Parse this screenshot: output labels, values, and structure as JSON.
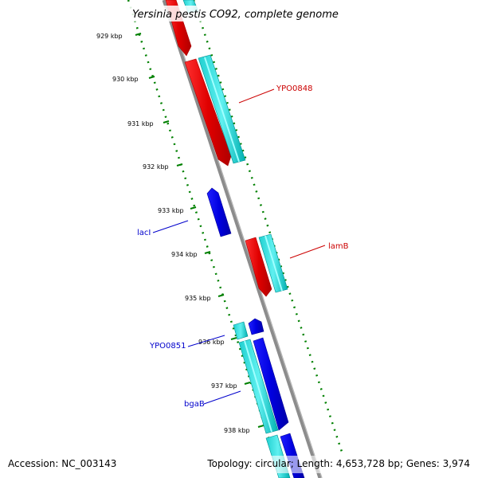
{
  "map": {
    "title": "Yersinia pestis CO92, complete genome",
    "accession": "Accession: NC_003143",
    "summary": "Topology: circular; Length: 4,653,728 bp; Genes: 3,974"
  },
  "ticks": [
    "929 kbp",
    "930 kbp",
    "931 kbp",
    "932 kbp",
    "933 kbp",
    "934 kbp",
    "935 kbp",
    "936 kbp",
    "937 kbp",
    "938 kbp"
  ],
  "gene_labels": {
    "ypo0848": "YPO0848",
    "lamb": "lamB",
    "laci": "lacI",
    "ypo0851": "YPO0851",
    "bgab": "bgaB"
  },
  "colors": {
    "forward_gene": "#ee0000",
    "forward_cds": "#00c8c8",
    "reverse_gene": "#0000dd",
    "reverse_cds": "#00c8c8",
    "backbone": "#8c8c8c",
    "tick": "#008000",
    "label_forward": "#cc0000",
    "label_reverse": "#0000cc"
  }
}
